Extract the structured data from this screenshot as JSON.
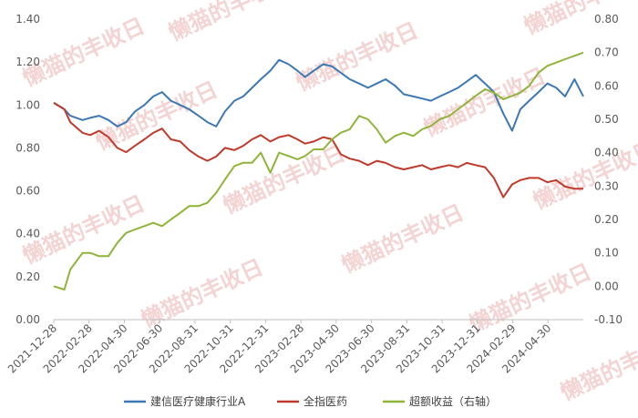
{
  "watermark_text": "懒猫的丰收日",
  "chart_data": {
    "type": "line",
    "dual_axis": true,
    "ylim_left": [
      0.0,
      1.4
    ],
    "yticks_left": [
      "0.00",
      "0.20",
      "0.40",
      "0.60",
      "0.80",
      "1.00",
      "1.20",
      "1.40"
    ],
    "ylim_right": [
      -0.1,
      0.8
    ],
    "yticks_right": [
      "-0.10",
      "0.00",
      "0.10",
      "0.20",
      "0.30",
      "0.40",
      "0.50",
      "0.60",
      "0.70",
      "0.80"
    ],
    "x_tick_labels": [
      "2021-12-28",
      "2022-02-28",
      "2022-04-30",
      "2022-06-30",
      "2022-08-31",
      "2022-10-31",
      "2022-12-31",
      "2023-02-28",
      "2023-04-30",
      "2023-06-30",
      "2023-08-31",
      "2023-10-31",
      "2023-12-31",
      "2024-02-29",
      "2024-04-30"
    ],
    "legend_position": "bottom",
    "grid": false,
    "x": [
      "2021-12-28",
      "2022-01-15",
      "2022-01-25",
      "2022-02-15",
      "2022-02-28",
      "2022-03-15",
      "2022-03-31",
      "2022-04-15",
      "2022-04-30",
      "2022-05-15",
      "2022-05-31",
      "2022-06-15",
      "2022-06-30",
      "2022-07-15",
      "2022-07-31",
      "2022-08-15",
      "2022-08-31",
      "2022-09-15",
      "2022-09-30",
      "2022-10-15",
      "2022-10-31",
      "2022-11-15",
      "2022-11-30",
      "2022-12-15",
      "2022-12-31",
      "2023-01-15",
      "2023-01-31",
      "2023-02-15",
      "2023-02-28",
      "2023-03-15",
      "2023-03-31",
      "2023-04-15",
      "2023-04-30",
      "2023-05-15",
      "2023-05-31",
      "2023-06-15",
      "2023-06-30",
      "2023-07-15",
      "2023-07-31",
      "2023-08-15",
      "2023-08-31",
      "2023-09-15",
      "2023-09-30",
      "2023-10-15",
      "2023-10-31",
      "2023-11-15",
      "2023-11-30",
      "2023-12-15",
      "2023-12-31",
      "2024-01-15",
      "2024-01-31",
      "2024-02-15",
      "2024-02-29",
      "2024-03-15",
      "2024-03-31",
      "2024-04-15",
      "2024-04-30",
      "2024-05-15",
      "2024-05-31",
      "2024-06-15"
    ],
    "series": [
      {
        "name": "建信医疗健康行业A",
        "axis": "left",
        "color": "#3c78b4",
        "values": [
          1.01,
          0.98,
          0.95,
          0.93,
          0.94,
          0.95,
          0.93,
          0.9,
          0.92,
          0.97,
          1.0,
          1.04,
          1.06,
          1.02,
          1.0,
          0.98,
          0.95,
          0.92,
          0.9,
          0.97,
          1.02,
          1.04,
          1.08,
          1.12,
          1.16,
          1.21,
          1.19,
          1.16,
          1.13,
          1.16,
          1.19,
          1.18,
          1.15,
          1.12,
          1.1,
          1.08,
          1.1,
          1.12,
          1.09,
          1.05,
          1.04,
          1.03,
          1.02,
          1.04,
          1.06,
          1.08,
          1.11,
          1.14,
          1.1,
          1.06,
          0.96,
          0.88,
          0.98,
          1.02,
          1.06,
          1.1,
          1.08,
          1.04,
          1.12,
          1.04
        ]
      },
      {
        "name": "全指医药",
        "axis": "left",
        "color": "#c0392b",
        "values": [
          1.01,
          0.98,
          0.92,
          0.87,
          0.86,
          0.88,
          0.85,
          0.8,
          0.78,
          0.81,
          0.84,
          0.87,
          0.89,
          0.84,
          0.83,
          0.79,
          0.76,
          0.74,
          0.76,
          0.8,
          0.79,
          0.81,
          0.84,
          0.86,
          0.83,
          0.85,
          0.86,
          0.84,
          0.82,
          0.83,
          0.85,
          0.84,
          0.77,
          0.75,
          0.74,
          0.72,
          0.74,
          0.73,
          0.71,
          0.7,
          0.71,
          0.72,
          0.7,
          0.71,
          0.72,
          0.71,
          0.73,
          0.72,
          0.71,
          0.66,
          0.57,
          0.63,
          0.65,
          0.66,
          0.66,
          0.64,
          0.65,
          0.62,
          0.61,
          0.61
        ]
      },
      {
        "name": "超额收益（右轴）",
        "axis": "right",
        "color": "#8fb43a",
        "values": [
          0.0,
          -0.01,
          0.05,
          0.1,
          0.1,
          0.09,
          0.09,
          0.13,
          0.16,
          0.17,
          0.18,
          0.19,
          0.18,
          0.2,
          0.22,
          0.24,
          0.24,
          0.25,
          0.28,
          0.32,
          0.36,
          0.37,
          0.37,
          0.4,
          0.34,
          0.4,
          0.39,
          0.38,
          0.39,
          0.41,
          0.41,
          0.44,
          0.46,
          0.47,
          0.51,
          0.5,
          0.47,
          0.43,
          0.45,
          0.46,
          0.45,
          0.47,
          0.48,
          0.5,
          0.51,
          0.53,
          0.55,
          0.57,
          0.59,
          0.58,
          0.56,
          0.57,
          0.58,
          0.6,
          0.64,
          0.66,
          0.67,
          0.68,
          0.69,
          0.7
        ]
      }
    ]
  }
}
